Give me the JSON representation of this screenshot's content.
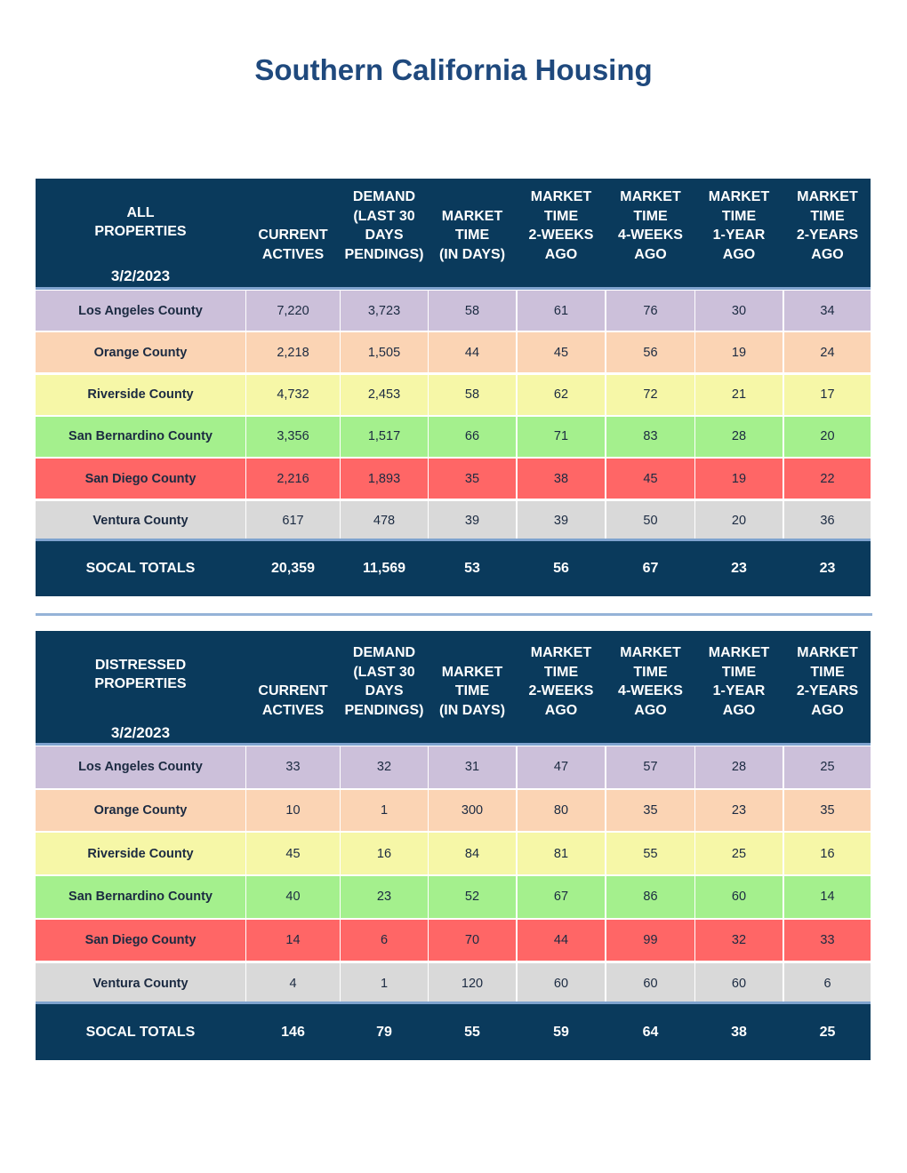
{
  "title": "Southern California Housing",
  "columns": [
    [
      "CURRENT",
      "ACTIVES"
    ],
    [
      "DEMAND",
      "(LAST 30",
      "DAYS",
      "PENDINGS)"
    ],
    [
      "MARKET",
      "TIME",
      "(IN DAYS)"
    ],
    [
      "MARKET",
      "TIME",
      "2-WEEKS",
      "AGO"
    ],
    [
      "MARKET",
      "TIME",
      "4-WEEKS",
      "AGO"
    ],
    [
      "MARKET",
      "TIME",
      "1-YEAR",
      "AGO"
    ],
    [
      "MARKET",
      "TIME",
      "2-YEARS",
      "AGO"
    ]
  ],
  "tables": [
    {
      "label_lines": [
        "ALL",
        "PROPERTIES"
      ],
      "date": "3/2/2023",
      "rows": [
        {
          "name": "Los Angeles County",
          "values": [
            "7,220",
            "3,723",
            "58",
            "61",
            "76",
            "30",
            "34"
          ],
          "color": "#ccc0da"
        },
        {
          "name": "Orange County",
          "values": [
            "2,218",
            "1,505",
            "44",
            "45",
            "56",
            "19",
            "24"
          ],
          "color": "#fbd4b4"
        },
        {
          "name": "Riverside County",
          "values": [
            "4,732",
            "2,453",
            "58",
            "62",
            "72",
            "21",
            "17"
          ],
          "color": "#f6f7a7"
        },
        {
          "name": "San Bernardino County",
          "values": [
            "3,356",
            "1,517",
            "66",
            "71",
            "83",
            "28",
            "20"
          ],
          "color": "#a4f08d"
        },
        {
          "name": "San Diego County",
          "values": [
            "2,216",
            "1,893",
            "35",
            "38",
            "45",
            "19",
            "22"
          ],
          "color": "#ff6666"
        },
        {
          "name": "Ventura County",
          "values": [
            "617",
            "478",
            "39",
            "39",
            "50",
            "20",
            "36"
          ],
          "color": "#d9d9d9"
        }
      ],
      "totals": {
        "label": "SOCAL TOTALS",
        "values": [
          "20,359",
          "11,569",
          "53",
          "56",
          "67",
          "23",
          "23"
        ]
      }
    },
    {
      "label_lines": [
        "DISTRESSED",
        "PROPERTIES"
      ],
      "date": "3/2/2023",
      "rows": [
        {
          "name": "Los Angeles County",
          "values": [
            "33",
            "32",
            "31",
            "47",
            "57",
            "28",
            "25"
          ],
          "color": "#ccc0da"
        },
        {
          "name": "Orange County",
          "values": [
            "10",
            "1",
            "300",
            "80",
            "35",
            "23",
            "35"
          ],
          "color": "#fbd4b4"
        },
        {
          "name": "Riverside County",
          "values": [
            "45",
            "16",
            "84",
            "81",
            "55",
            "25",
            "16"
          ],
          "color": "#f6f7a7"
        },
        {
          "name": "San Bernardino County",
          "values": [
            "40",
            "23",
            "52",
            "67",
            "86",
            "60",
            "14"
          ],
          "color": "#a4f08d"
        },
        {
          "name": "San Diego County",
          "values": [
            "14",
            "6",
            "70",
            "44",
            "99",
            "32",
            "33"
          ],
          "color": "#ff6666"
        },
        {
          "name": "Ventura County",
          "values": [
            "4",
            "1",
            "120",
            "60",
            "60",
            "60",
            "6"
          ],
          "color": "#d9d9d9"
        }
      ],
      "totals": {
        "label": "SOCAL TOTALS",
        "values": [
          "146",
          "79",
          "55",
          "59",
          "64",
          "38",
          "25"
        ]
      }
    }
  ],
  "colors": {
    "header_bg": "#0a3a5c",
    "title": "#1f497d",
    "rule": "#7fa3cf"
  }
}
